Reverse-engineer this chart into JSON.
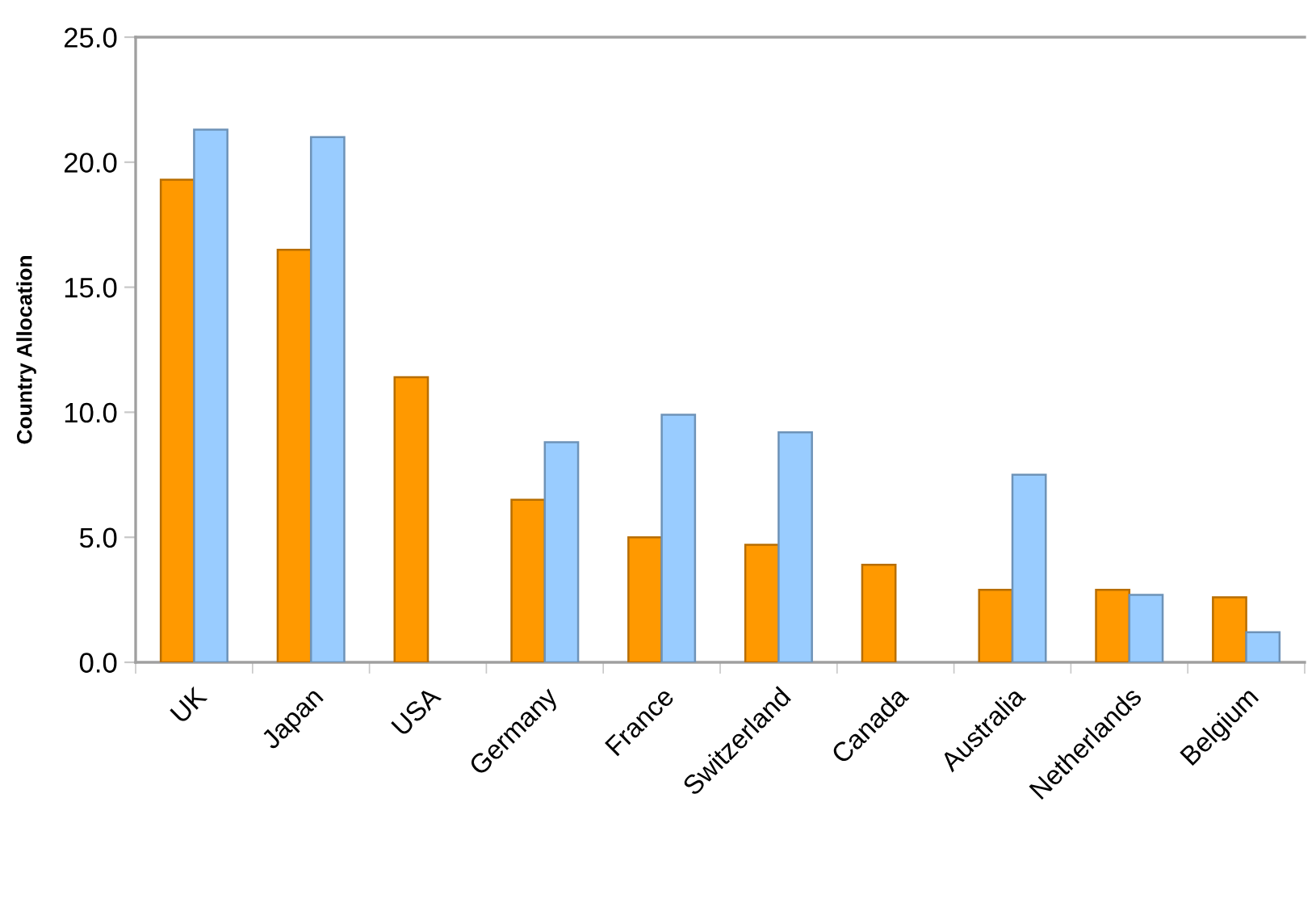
{
  "chart_data": {
    "type": "bar",
    "ylabel": "Country Allocation",
    "categories": [
      "UK",
      "Japan",
      "USA",
      "Germany",
      "France",
      "Switzerland",
      "Canada",
      "Australia",
      "Netherlands",
      "Belgium"
    ],
    "series": [
      {
        "color": "#ff9900",
        "values": [
          19.3,
          16.5,
          11.4,
          6.5,
          5.0,
          4.7,
          3.9,
          2.9,
          2.9,
          2.6
        ]
      },
      {
        "color": "#99ccff",
        "values": [
          21.3,
          21.0,
          null,
          8.8,
          9.9,
          9.2,
          null,
          7.5,
          2.7,
          1.2
        ]
      }
    ],
    "ylim": [
      0,
      25
    ],
    "yticks": [
      {
        "value": 0,
        "label": "0.0"
      },
      {
        "value": 5,
        "label": "5.0"
      },
      {
        "value": 10,
        "label": "10.0"
      },
      {
        "value": 15,
        "label": "15.0"
      },
      {
        "value": 20,
        "label": "20.0"
      },
      {
        "value": 25,
        "label": "25.0"
      }
    ]
  }
}
